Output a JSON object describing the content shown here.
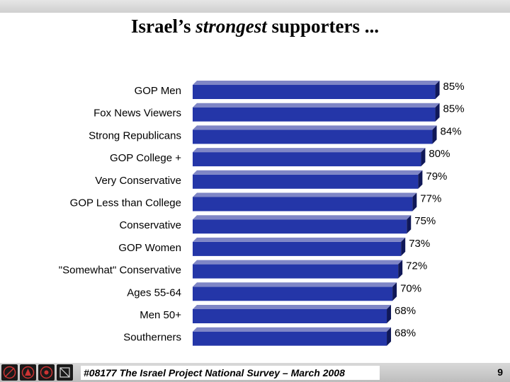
{
  "title": {
    "before": "Israel’s ",
    "emphasis": "strongest",
    "after": " supporters ..."
  },
  "chart_data": {
    "type": "bar",
    "orientation": "horizontal",
    "categories": [
      "GOP Men",
      "Fox News Viewers",
      "Strong Republicans",
      "GOP College +",
      "Very Conservative",
      "GOP Less than College",
      "Conservative",
      "GOP Women",
      "\"Somewhat\" Conservative",
      "Ages 55-64",
      "Men 50+",
      "Southerners"
    ],
    "values": [
      85,
      85,
      84,
      80,
      79,
      77,
      75,
      73,
      72,
      70,
      68,
      68
    ],
    "value_labels": [
      "85%",
      "85%",
      "84%",
      "80%",
      "79%",
      "77%",
      "75%",
      "73%",
      "72%",
      "70%",
      "68%",
      "68%"
    ],
    "xlim": [
      0,
      100
    ],
    "bar_color": "#2436a8",
    "bar_side_color": "#101858",
    "bar_top_color": "#7f86c6"
  },
  "footer": {
    "text": "#08177 The Israel Project National Survey – March 2008",
    "page": "9"
  }
}
